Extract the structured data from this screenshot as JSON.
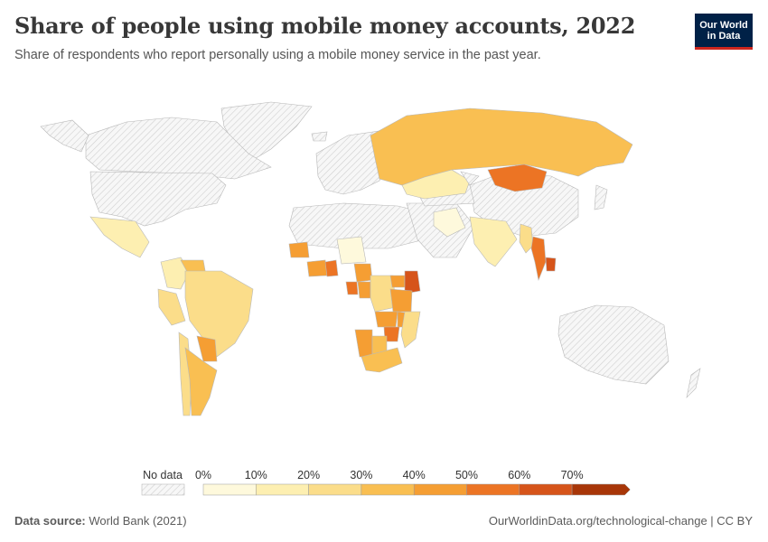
{
  "header": {
    "title": "Share of people using mobile money accounts, 2022",
    "subtitle": "Share of respondents who report personally using a mobile money service in the past year."
  },
  "logo": {
    "line1": "Our World",
    "line2": "in Data",
    "bg": "#002147",
    "accent": "#ce261e"
  },
  "legend": {
    "no_data_label": "No data",
    "bins": [
      "0%",
      "10%",
      "20%",
      "30%",
      "40%",
      "50%",
      "60%",
      "70%"
    ],
    "colors": [
      "#fef9dc",
      "#fdefb1",
      "#fbdd8a",
      "#f9bf52",
      "#f59e33",
      "#ec7424",
      "#d6541a",
      "#a83608"
    ]
  },
  "footer": {
    "source_label": "Data source:",
    "source": "World Bank (2021)",
    "credit": "OurWorldinData.org/technological-change | CC BY"
  },
  "chart_data": {
    "type": "choropleth",
    "metric": "Share of respondents who report personally using a mobile money service in the past year",
    "unit": "%",
    "year": 2022,
    "scale": [
      0,
      10,
      20,
      30,
      40,
      50,
      60,
      70
    ],
    "regions": [
      {
        "name": "Russia",
        "value": 33
      },
      {
        "name": "Mongolia",
        "value": 57
      },
      {
        "name": "Kazakhstan",
        "value": 12
      },
      {
        "name": "Thailand",
        "value": 56
      },
      {
        "name": "Cambodia",
        "value": 60
      },
      {
        "name": "Myanmar",
        "value": 28
      },
      {
        "name": "Kenya",
        "value": 63
      },
      {
        "name": "Uganda",
        "value": 48
      },
      {
        "name": "Tanzania",
        "value": 47
      },
      {
        "name": "Zimbabwe",
        "value": 56
      },
      {
        "name": "Zambia",
        "value": 44
      },
      {
        "name": "Malawi",
        "value": 40
      },
      {
        "name": "Mozambique",
        "value": 28
      },
      {
        "name": "Namibia",
        "value": 45
      },
      {
        "name": "Botswana",
        "value": 38
      },
      {
        "name": "South Africa",
        "value": 35
      },
      {
        "name": "Ghana",
        "value": 55
      },
      {
        "name": "Cote d'Ivoire",
        "value": 48
      },
      {
        "name": "Senegal",
        "value": 45
      },
      {
        "name": "Gabon",
        "value": 58
      },
      {
        "name": "Cameroon",
        "value": 42
      },
      {
        "name": "Congo",
        "value": 42
      },
      {
        "name": "DR Congo",
        "value": 28
      },
      {
        "name": "Nigeria",
        "value": 8
      },
      {
        "name": "Argentina",
        "value": 38
      },
      {
        "name": "Paraguay",
        "value": 45
      },
      {
        "name": "Brazil",
        "value": 22
      },
      {
        "name": "Venezuela",
        "value": 35
      },
      {
        "name": "Colombia",
        "value": 18
      },
      {
        "name": "Peru",
        "value": 22
      },
      {
        "name": "Chile",
        "value": 22
      },
      {
        "name": "Mexico",
        "value": 10
      },
      {
        "name": "India",
        "value": 15
      },
      {
        "name": "Iran",
        "value": 5
      },
      {
        "name": "China",
        "value": null
      },
      {
        "name": "United States",
        "value": null
      },
      {
        "name": "Canada",
        "value": null
      },
      {
        "name": "Australia",
        "value": null
      }
    ]
  }
}
